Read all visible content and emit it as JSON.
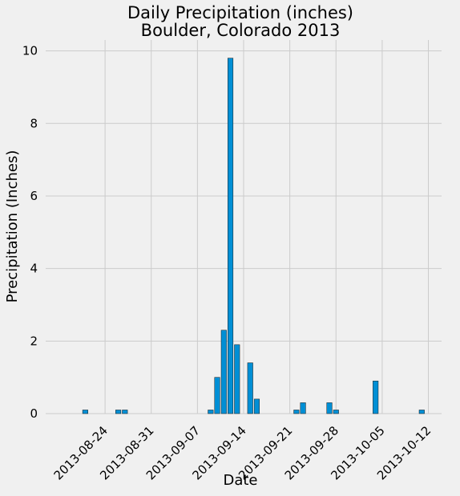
{
  "chart_data": {
    "type": "bar",
    "title": "Daily Precipitation (inches)",
    "subtitle": "Boulder, Colorado 2013",
    "xlabel": "Date",
    "ylabel": "Precipitation (Inches)",
    "xlim": [
      "2013-08-15",
      "2013-10-14"
    ],
    "ylim": [
      0,
      10.3
    ],
    "yticks": [
      0,
      2,
      4,
      6,
      8,
      10
    ],
    "xticks": [
      "2013-08-24",
      "2013-08-31",
      "2013-09-07",
      "2013-09-14",
      "2013-09-21",
      "2013-09-28",
      "2013-10-05",
      "2013-10-12"
    ],
    "grid": true,
    "bar_color": "#008fd5",
    "data": [
      {
        "date": "2013-08-21",
        "value": 0.1
      },
      {
        "date": "2013-08-26",
        "value": 0.1
      },
      {
        "date": "2013-08-27",
        "value": 0.1
      },
      {
        "date": "2013-09-09",
        "value": 0.1
      },
      {
        "date": "2013-09-10",
        "value": 1.0
      },
      {
        "date": "2013-09-11",
        "value": 2.3
      },
      {
        "date": "2013-09-12",
        "value": 9.8
      },
      {
        "date": "2013-09-13",
        "value": 1.9
      },
      {
        "date": "2013-09-15",
        "value": 1.4
      },
      {
        "date": "2013-09-16",
        "value": 0.4
      },
      {
        "date": "2013-09-22",
        "value": 0.1
      },
      {
        "date": "2013-09-23",
        "value": 0.3
      },
      {
        "date": "2013-09-27",
        "value": 0.3
      },
      {
        "date": "2013-09-28",
        "value": 0.1
      },
      {
        "date": "2013-10-04",
        "value": 0.9
      },
      {
        "date": "2013-10-11",
        "value": 0.1
      }
    ]
  }
}
